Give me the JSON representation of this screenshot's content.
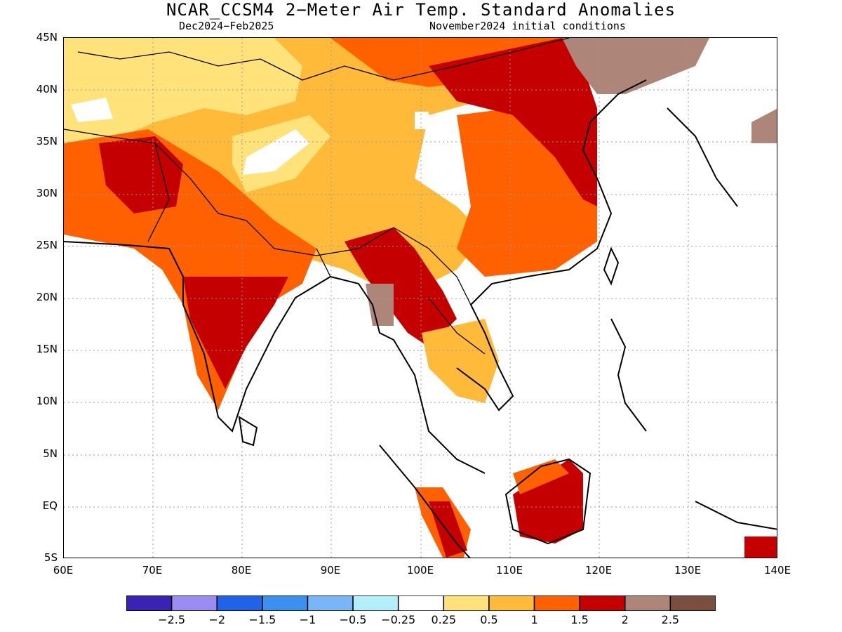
{
  "title": "NCAR_CCSM4 2−Meter Air Temp. Standard Anomalies",
  "subtitle_left": "Dec2024−Feb2025",
  "subtitle_right": "November2024 initial conditions",
  "y_ticks": [
    "45N",
    "40N",
    "35N",
    "30N",
    "25N",
    "20N",
    "15N",
    "10N",
    "5N",
    "EQ",
    "5S"
  ],
  "x_ticks": [
    "60E",
    "70E",
    "80E",
    "90E",
    "100E",
    "110E",
    "120E",
    "130E",
    "140E"
  ],
  "colorbar": {
    "colors": [
      "#3a22b4",
      "#9a8cf2",
      "#1f63e6",
      "#3c91f0",
      "#78b6f8",
      "#b3effa",
      "#ffffff",
      "#ffe27a",
      "#ffba3a",
      "#ff6100",
      "#c40000",
      "#ad8579",
      "#7a4e40"
    ],
    "labels": [
      "−2.5",
      "−2",
      "−1.5",
      "−1",
      "−0.5",
      "−0.25",
      "0.25",
      "0.5",
      "1",
      "1.5",
      "2",
      "2.5"
    ]
  },
  "anomaly_colors": {
    "light_yellow": "#ffe27a",
    "yellow_orange": "#ffba3a",
    "orange": "#ff6100",
    "dark_red": "#c40000",
    "brown": "#ad8579",
    "neutral": "#ffffff"
  }
}
